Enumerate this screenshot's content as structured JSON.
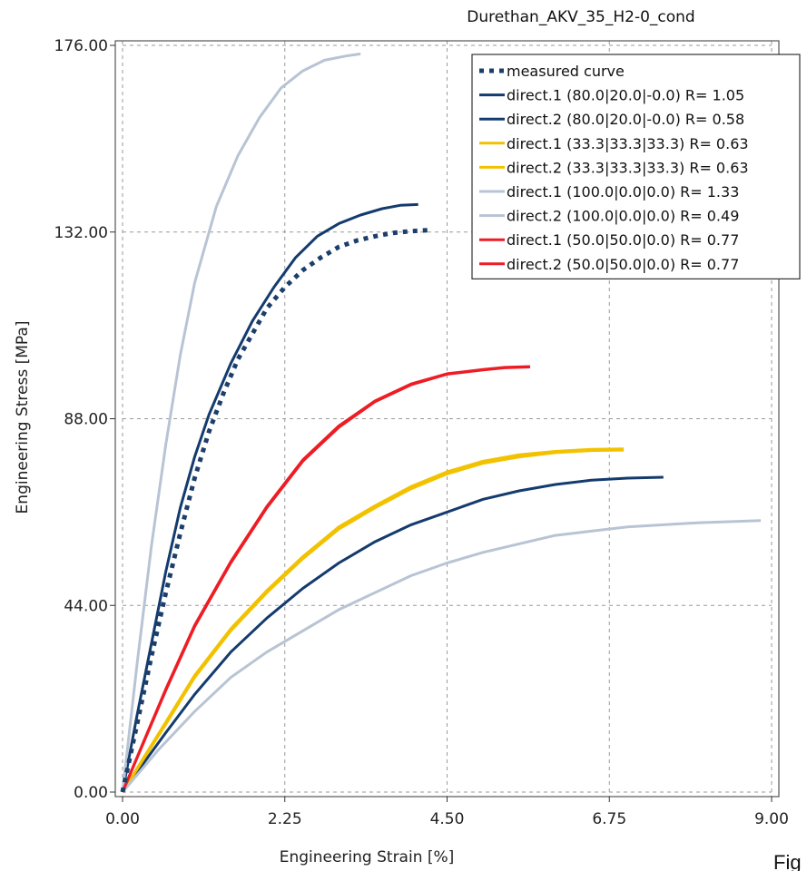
{
  "corner_text": "Fig",
  "chart_data": {
    "type": "line",
    "title": "Durethan_AKV_35_H2-0_cond",
    "xlabel": "Engineering Strain [%]",
    "ylabel": "Engineering Stress [MPa]",
    "xlim": [
      0,
      9
    ],
    "ylim": [
      0,
      176
    ],
    "x_ticks": [
      "0.00",
      "2.25",
      "4.50",
      "6.75",
      "9.00"
    ],
    "y_ticks": [
      "0.00",
      "44.00",
      "88.00",
      "132.00",
      "176.00"
    ],
    "grid": true,
    "legend_position": "top-right",
    "series": [
      {
        "name": "measured curve",
        "color": "#1b3e6b",
        "dash": "dotted",
        "x": [
          0,
          0.2,
          0.4,
          0.6,
          0.8,
          1.0,
          1.2,
          1.4,
          1.6,
          1.8,
          2.0,
          2.25,
          2.5,
          2.75,
          3.0,
          3.25,
          3.5,
          3.75,
          4.0,
          4.3
        ],
        "y": [
          0,
          16,
          32,
          47,
          61,
          74,
          85,
          94,
          102,
          108,
          114,
          119,
          123,
          126,
          128.5,
          130,
          131,
          131.8,
          132.2,
          132.5
        ]
      },
      {
        "name": "direct.1 (80.0|20.0|-0.0) R= 1.05",
        "color": "#143b6e",
        "dash": "solid",
        "x": [
          0,
          0.2,
          0.4,
          0.6,
          0.8,
          1.0,
          1.2,
          1.5,
          1.8,
          2.1,
          2.4,
          2.7,
          3.0,
          3.3,
          3.6,
          3.85,
          4.1
        ],
        "y": [
          0,
          18,
          35,
          52,
          67,
          79,
          89,
          101,
          111,
          119,
          126,
          131,
          134,
          136,
          137.5,
          138.3,
          138.5
        ]
      },
      {
        "name": "direct.2 (80.0|20.0|-0.0) R= 0.58",
        "color": "#143b6e",
        "dash": "solid",
        "x": [
          0,
          0.3,
          0.6,
          1.0,
          1.5,
          2.0,
          2.5,
          3.0,
          3.5,
          4.0,
          4.5,
          5.0,
          5.5,
          6.0,
          6.5,
          7.0,
          7.5
        ],
        "y": [
          0,
          7,
          14,
          23,
          33,
          41,
          48,
          54,
          59,
          63,
          66,
          69,
          71,
          72.5,
          73.5,
          74,
          74.2
        ]
      },
      {
        "name": "direct.1 (33.3|33.3|33.3) R= 0.63",
        "color": "#f2c200",
        "dash": "solid",
        "x": [
          0,
          0.3,
          0.6,
          1.0,
          1.5,
          2.0,
          2.5,
          3.0,
          3.5,
          4.0,
          4.5,
          5.0,
          5.5,
          6.0,
          6.5,
          6.95
        ],
        "y": [
          0,
          8,
          16,
          27,
          38,
          47,
          55,
          62,
          67,
          71.5,
          75,
          77.5,
          79,
          80,
          80.5,
          80.6
        ]
      },
      {
        "name": "direct.2 (33.3|33.3|33.3) R= 0.63",
        "color": "#f2c200",
        "dash": "solid",
        "x": [
          0,
          0.3,
          0.6,
          1.0,
          1.5,
          2.0,
          2.5,
          3.0,
          3.5,
          4.0,
          4.5,
          5.0,
          5.5,
          6.0,
          6.5,
          6.95
        ],
        "y": [
          0,
          8.3,
          16.5,
          27.5,
          38.5,
          47.5,
          55.5,
          62.5,
          67.5,
          72,
          75.5,
          78,
          79.5,
          80.3,
          80.8,
          80.9
        ]
      },
      {
        "name": "direct.1 (100.0|0.0|0.0) R= 1.33",
        "color": "#b8c4d4",
        "dash": "solid",
        "x": [
          0,
          0.2,
          0.4,
          0.6,
          0.8,
          1.0,
          1.3,
          1.6,
          1.9,
          2.2,
          2.5,
          2.8,
          3.1,
          3.3
        ],
        "y": [
          0,
          30,
          58,
          82,
          103,
          120,
          138,
          150,
          159,
          166,
          170,
          172.5,
          173.5,
          174
        ]
      },
      {
        "name": "direct.2 (100.0|0.0|0.0) R= 0.49",
        "color": "#b8c4d4",
        "dash": "solid",
        "x": [
          0,
          0.5,
          1.0,
          1.5,
          2.0,
          2.5,
          3.0,
          3.5,
          4.0,
          4.5,
          5.0,
          5.5,
          6.0,
          6.5,
          7.0,
          7.5,
          8.0,
          8.5,
          8.85
        ],
        "y": [
          0,
          10,
          19,
          27,
          33,
          38,
          43,
          47,
          51,
          54,
          56.5,
          58.5,
          60.5,
          61.5,
          62.5,
          63,
          63.5,
          63.8,
          64
        ]
      },
      {
        "name": "direct.1 (50.0|50.0|0.0) R= 0.77",
        "color": "#ee1c24",
        "dash": "solid",
        "x": [
          0,
          0.3,
          0.6,
          1.0,
          1.5,
          2.0,
          2.5,
          3.0,
          3.5,
          4.0,
          4.5,
          5.0,
          5.3,
          5.65
        ],
        "y": [
          0,
          12,
          24,
          39,
          54,
          67,
          78,
          86,
          92,
          96,
          98.5,
          99.5,
          100,
          100.2
        ]
      },
      {
        "name": "direct.2 (50.0|50.0|0.0) R= 0.77",
        "color": "#ee1c24",
        "dash": "solid",
        "x": [
          0,
          0.3,
          0.6,
          1.0,
          1.5,
          2.0,
          2.5,
          3.0,
          3.5,
          4.0,
          4.5,
          5.0,
          5.3,
          5.65
        ],
        "y": [
          0,
          12.2,
          24.3,
          39.3,
          54.3,
          67.3,
          78.3,
          86.3,
          92.2,
          96.2,
          98.6,
          99.6,
          100.1,
          100.3
        ]
      }
    ]
  }
}
